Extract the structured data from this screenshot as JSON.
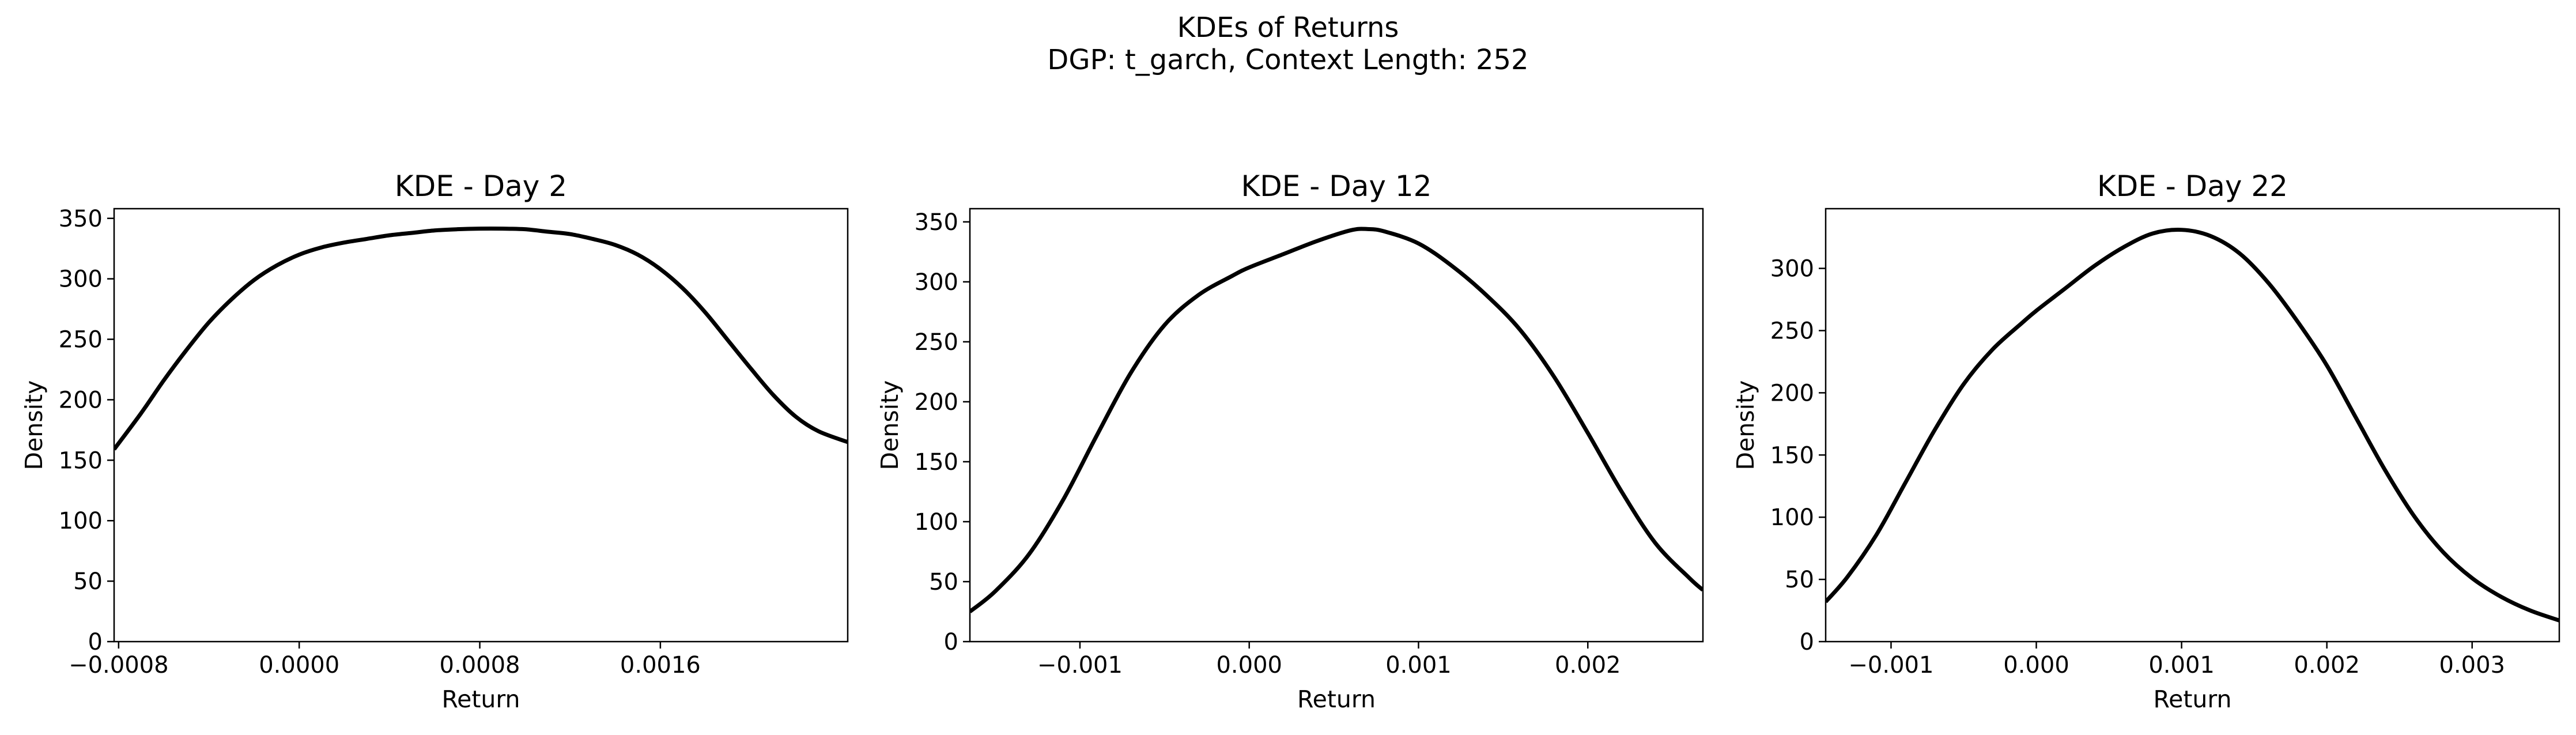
{
  "figure": {
    "title_line1": "KDEs of Returns",
    "title_line2": "DGP: t_garch, Context Length: 252"
  },
  "chart_data": [
    {
      "type": "line",
      "title": "KDE - Day 2",
      "xlabel": "Return",
      "ylabel": "Density",
      "xlim": [
        -0.00082,
        0.00243
      ],
      "ylim": [
        0,
        358
      ],
      "xticks": [
        -0.0008,
        0.0,
        0.0008,
        0.0016
      ],
      "xtick_labels": [
        "−0.0008",
        "0.0000",
        "0.0008",
        "0.0016"
      ],
      "yticks": [
        0,
        50,
        100,
        150,
        200,
        250,
        300,
        350
      ],
      "ytick_labels": [
        "0",
        "50",
        "100",
        "150",
        "200",
        "250",
        "300",
        "350"
      ],
      "series": [
        {
          "color": "#000000",
          "x": [
            -0.00082,
            -0.0007,
            -0.0006,
            -0.0005,
            -0.0004,
            -0.0003,
            -0.0002,
            -0.0001,
            0.0,
            0.0001,
            0.0002,
            0.0003,
            0.0004,
            0.0005,
            0.0006,
            0.0007,
            0.0008,
            0.0009,
            0.001,
            0.0011,
            0.0012,
            0.0013,
            0.0014,
            0.0015,
            0.0016,
            0.0017,
            0.0018,
            0.0019,
            0.002,
            0.0021,
            0.0022,
            0.0023,
            0.00243
          ],
          "y": [
            159,
            189,
            216,
            241,
            264,
            283,
            299,
            311,
            320,
            326,
            330,
            333,
            336,
            338,
            340,
            341,
            341.5,
            341.5,
            341,
            339,
            337,
            333,
            328,
            320,
            308,
            292,
            272,
            249,
            226,
            204,
            186,
            174,
            165
          ]
        }
      ]
    },
    {
      "type": "line",
      "title": "KDE - Day 12",
      "xlabel": "Return",
      "ylabel": "Density",
      "xlim": [
        -0.00165,
        0.00268
      ],
      "ylim": [
        0,
        361
      ],
      "xticks": [
        -0.001,
        0.0,
        0.001,
        0.002
      ],
      "xtick_labels": [
        "−0.001",
        "0.000",
        "0.001",
        "0.002"
      ],
      "yticks": [
        0,
        50,
        100,
        150,
        200,
        250,
        300,
        350
      ],
      "ytick_labels": [
        "0",
        "50",
        "100",
        "150",
        "200",
        "250",
        "300",
        "350"
      ],
      "series": [
        {
          "color": "#000000",
          "x": [
            -0.00165,
            -0.0015,
            -0.0013,
            -0.0011,
            -0.0009,
            -0.0007,
            -0.0005,
            -0.0003,
            -0.0001,
            0.0,
            0.0002,
            0.0004,
            0.0006,
            0.0007,
            0.0008,
            0.001,
            0.0012,
            0.0014,
            0.0016,
            0.0018,
            0.002,
            0.0022,
            0.0024,
            0.0026,
            0.00268
          ],
          "y": [
            25,
            42,
            73,
            118,
            172,
            224,
            264,
            289,
            305,
            312,
            323,
            334,
            343,
            344,
            342,
            332,
            313,
            289,
            260,
            221,
            174,
            125,
            82,
            53,
            43
          ]
        }
      ]
    },
    {
      "type": "line",
      "title": "KDE - Day 22",
      "xlabel": "Return",
      "ylabel": "Density",
      "xlim": [
        -0.00145,
        0.0036
      ],
      "ylim": [
        0,
        348
      ],
      "xticks": [
        -0.001,
        0.0,
        0.001,
        0.002,
        0.003
      ],
      "xtick_labels": [
        "−0.001",
        "0.000",
        "0.001",
        "0.002",
        "0.003"
      ],
      "yticks": [
        0,
        50,
        100,
        150,
        200,
        250,
        300
      ],
      "ytick_labels": [
        "0",
        "50",
        "100",
        "150",
        "200",
        "250",
        "300"
      ],
      "series": [
        {
          "color": "#000000",
          "x": [
            -0.00145,
            -0.0013,
            -0.0011,
            -0.0009,
            -0.0007,
            -0.0005,
            -0.0003,
            -0.0001,
            0.0,
            0.0002,
            0.0004,
            0.0006,
            0.0008,
            0.001,
            0.0012,
            0.0014,
            0.0016,
            0.0018,
            0.002,
            0.0022,
            0.0024,
            0.0026,
            0.0028,
            0.003,
            0.0032,
            0.0034,
            0.0036
          ],
          "y": [
            32,
            52,
            86,
            128,
            170,
            207,
            235,
            256,
            266,
            284,
            302,
            317,
            328,
            331,
            326,
            312,
            288,
            257,
            222,
            180,
            138,
            101,
            72,
            51,
            36,
            25,
            17
          ]
        }
      ]
    }
  ]
}
